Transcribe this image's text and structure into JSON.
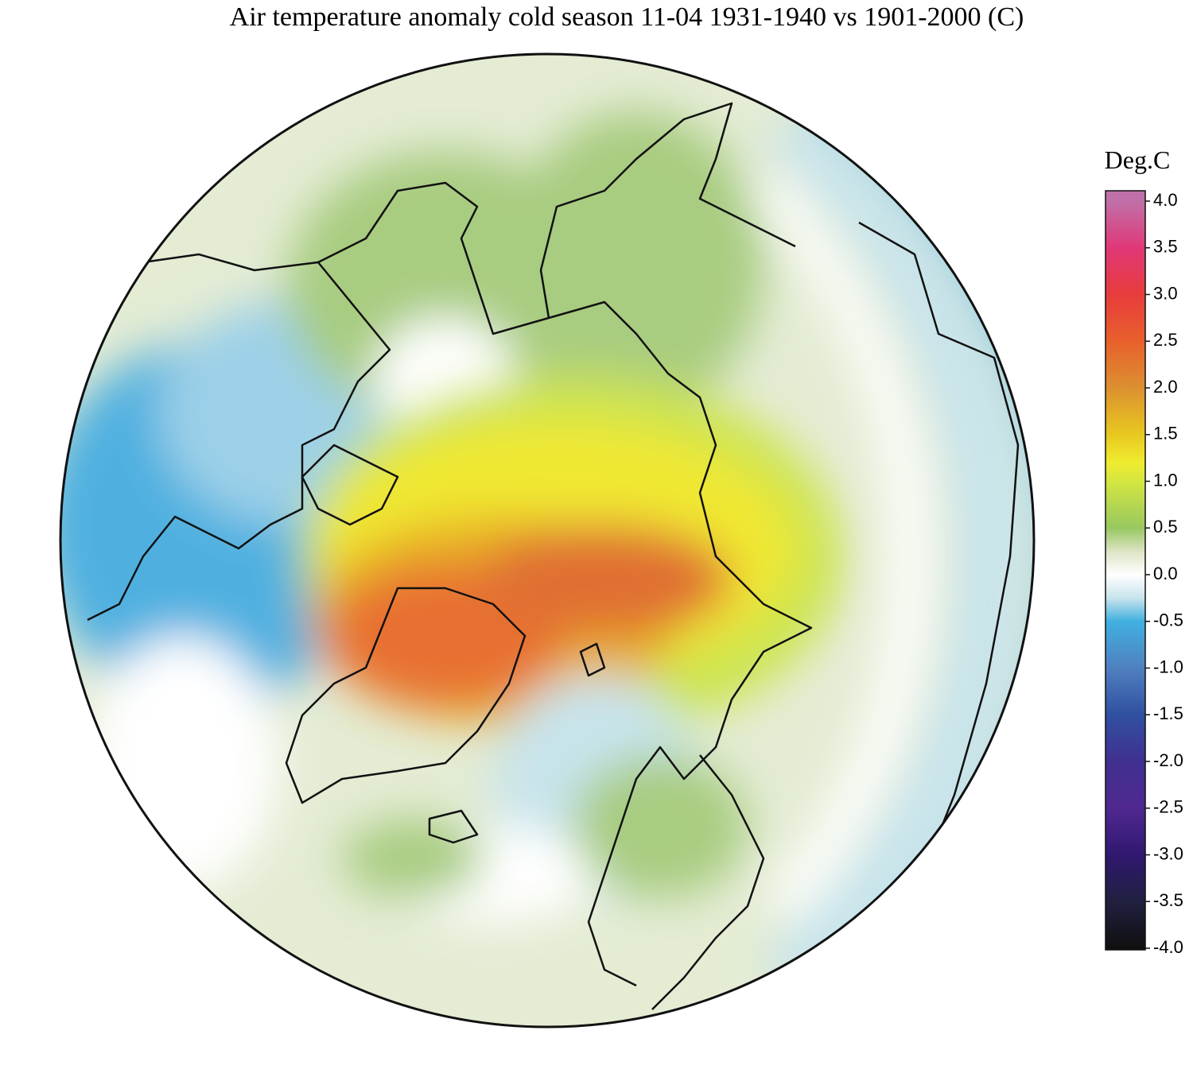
{
  "title": "Air temperature anomaly cold season 11-04 1931-1940 vs 1901-2000 (C)",
  "legend": {
    "title": "Deg.C",
    "range": [
      -4,
      4
    ],
    "ticks": [
      {
        "value": 4,
        "label": "4.0"
      },
      {
        "value": 3.5,
        "label": "3.5"
      },
      {
        "value": 3,
        "label": "3.0"
      },
      {
        "value": 2.5,
        "label": "2.5"
      },
      {
        "value": 2,
        "label": "2.0"
      },
      {
        "value": 1.5,
        "label": "1.5"
      },
      {
        "value": 1,
        "label": "1.0"
      },
      {
        "value": 0.5,
        "label": "0.5"
      },
      {
        "value": 0,
        "label": "0.0"
      },
      {
        "value": -0.5,
        "label": "-0.5"
      },
      {
        "value": -1,
        "label": "-1.0"
      },
      {
        "value": -1.5,
        "label": "-1.5"
      },
      {
        "value": -2,
        "label": "-2.0"
      },
      {
        "value": -2.5,
        "label": "-2.5"
      },
      {
        "value": -3,
        "label": "-3.0"
      },
      {
        "value": -3.5,
        "label": "-3.5"
      },
      {
        "value": -4,
        "label": "-4.0"
      }
    ],
    "colors": [
      {
        "value": 4,
        "color": "#c070a8"
      },
      {
        "value": 3.5,
        "color": "#e03878"
      },
      {
        "value": 3,
        "color": "#e83c3c"
      },
      {
        "value": 2.5,
        "color": "#e8602c"
      },
      {
        "value": 2,
        "color": "#dc9030"
      },
      {
        "value": 1.5,
        "color": "#e8c820"
      },
      {
        "value": 1.2,
        "color": "#f0ec30"
      },
      {
        "value": 1,
        "color": "#d4e640"
      },
      {
        "value": 0.5,
        "color": "#98c860"
      },
      {
        "value": 0.25,
        "color": "#dce4c4"
      },
      {
        "value": 0,
        "color": "#ffffff"
      },
      {
        "value": -0.25,
        "color": "#c8e4ec"
      },
      {
        "value": -0.5,
        "color": "#40b0e0"
      },
      {
        "value": -1,
        "color": "#5080c0"
      },
      {
        "value": -1.5,
        "color": "#3050a0"
      },
      {
        "value": -2,
        "color": "#403090"
      },
      {
        "value": -2.5,
        "color": "#502890"
      },
      {
        "value": -3,
        "color": "#301870"
      },
      {
        "value": -3.5,
        "color": "#202040"
      },
      {
        "value": -4,
        "color": "#101010"
      }
    ]
  }
}
